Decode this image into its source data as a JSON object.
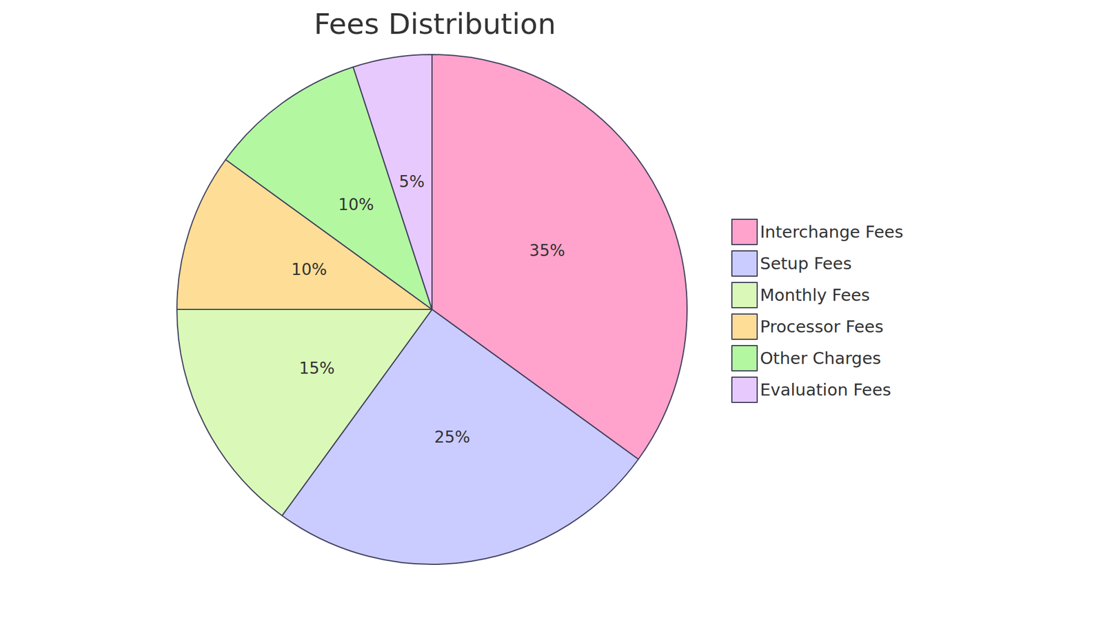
{
  "chart_data": {
    "type": "pie",
    "title": "Fees Distribution",
    "categories": [
      "Interchange Fees",
      "Setup Fees",
      "Monthly Fees",
      "Processor Fees",
      "Other Charges",
      "Evaluation Fees"
    ],
    "values": [
      35,
      25,
      15,
      10,
      10,
      5
    ],
    "value_labels": [
      "35%",
      "25%",
      "15%",
      "10%",
      "10%",
      "5%"
    ],
    "colors": [
      "#ffa3cc",
      "#cacbfe",
      "#daf9b9",
      "#fedd96",
      "#b3f8a0",
      "#e7c9fe"
    ],
    "data_labels": true,
    "legend": "right"
  }
}
